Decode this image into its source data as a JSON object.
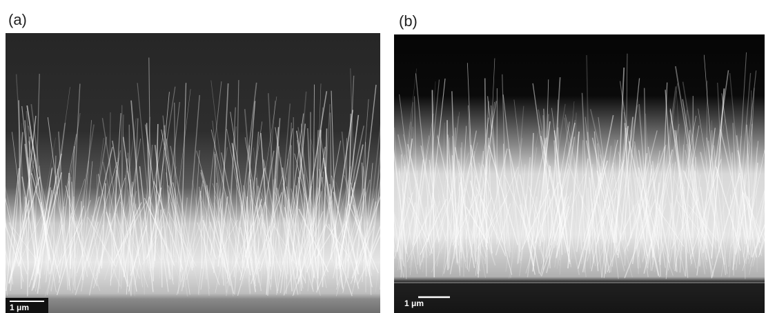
{
  "panels": [
    {
      "label": "(a)",
      "scale_bar": "1 μm"
    },
    {
      "label": "(b)",
      "scale_bar": "1 μm"
    }
  ]
}
